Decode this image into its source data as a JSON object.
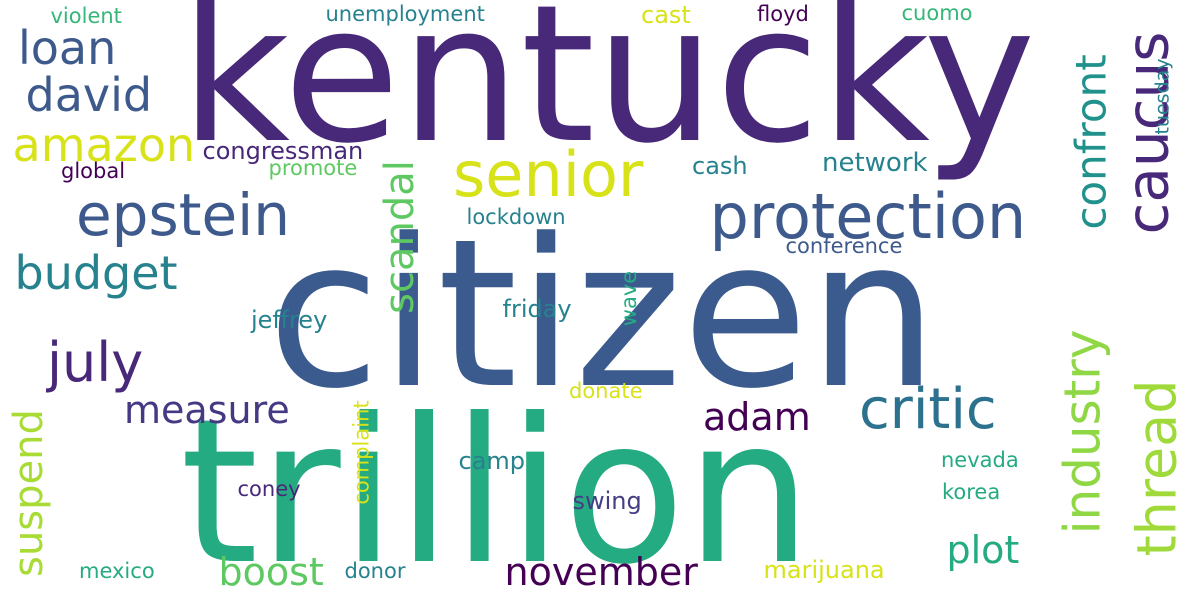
{
  "palette": {
    "dark_purple": "#440154",
    "purple": "#482878",
    "indigo": "#3e4a89",
    "blue": "#31688e",
    "teal_blue": "#26828e",
    "teal": "#1f9e89",
    "green": "#35b779",
    "light_green": "#6ece58",
    "lime": "#b5de2b",
    "yellow": "#d8e219"
  },
  "words": [
    {
      "text": "kentucky",
      "color": "#482878",
      "weight": 100
    },
    {
      "text": "citizen",
      "color": "#3b5a8e",
      "weight": 97
    },
    {
      "text": "trillion",
      "color": "#25ab82",
      "weight": 96
    },
    {
      "text": "protection",
      "color": "#3e5a8c",
      "weight": 45
    },
    {
      "text": "senior",
      "color": "#d8e219",
      "weight": 41
    },
    {
      "text": "epstein",
      "color": "#3e5a8c",
      "weight": 40
    },
    {
      "text": "caucus",
      "color": "#482878",
      "weight": 38
    },
    {
      "text": "industry",
      "color": "#8fd744",
      "weight": 36
    },
    {
      "text": "thread",
      "color": "#9fda3a",
      "weight": 33
    },
    {
      "text": "critic",
      "color": "#2c728e",
      "weight": 32
    },
    {
      "text": "july",
      "color": "#482878",
      "weight": 31
    },
    {
      "text": "confront",
      "color": "#21918c",
      "weight": 28
    },
    {
      "text": "amazon",
      "color": "#d8e219",
      "weight": 27
    },
    {
      "text": "david",
      "color": "#3e5a8c",
      "weight": 27
    },
    {
      "text": "loan",
      "color": "#3e5a8c",
      "weight": 27
    },
    {
      "text": "budget",
      "color": "#26828e",
      "weight": 26
    },
    {
      "text": "scandal",
      "color": "#5ec962",
      "weight": 24
    },
    {
      "text": "suspend",
      "color": "#a8db34",
      "weight": 22
    },
    {
      "text": "measure",
      "color": "#443983",
      "weight": 22
    },
    {
      "text": "november",
      "color": "#440154",
      "weight": 22
    },
    {
      "text": "boost",
      "color": "#5ec962",
      "weight": 22
    },
    {
      "text": "plot",
      "color": "#25ab82",
      "weight": 22
    },
    {
      "text": "adam",
      "color": "#440154",
      "weight": 21
    },
    {
      "text": "network",
      "color": "#26828e",
      "weight": 15
    },
    {
      "text": "congressman",
      "color": "#482878",
      "weight": 14
    },
    {
      "text": "camp",
      "color": "#26828e",
      "weight": 14
    },
    {
      "text": "jeffrey",
      "color": "#26828e",
      "weight": 14
    },
    {
      "text": "friday",
      "color": "#26828e",
      "weight": 14
    },
    {
      "text": "cash",
      "color": "#26828e",
      "weight": 14
    },
    {
      "text": "marijuana",
      "color": "#d8e219",
      "weight": 14
    },
    {
      "text": "swing",
      "color": "#433e85",
      "weight": 14
    },
    {
      "text": "cast",
      "color": "#d8e219",
      "weight": 14
    },
    {
      "text": "unemployment",
      "color": "#26828e",
      "weight": 12
    },
    {
      "text": "violent",
      "color": "#35b779",
      "weight": 12
    },
    {
      "text": "floyd",
      "color": "#440154",
      "weight": 12
    },
    {
      "text": "cuomo",
      "color": "#35b779",
      "weight": 12
    },
    {
      "text": "donor",
      "color": "#26828e",
      "weight": 12
    },
    {
      "text": "mexico",
      "color": "#25ab82",
      "weight": 12
    },
    {
      "text": "promote",
      "color": "#5ec962",
      "weight": 12
    },
    {
      "text": "global",
      "color": "#440154",
      "weight": 12
    },
    {
      "text": "lockdown",
      "color": "#26828e",
      "weight": 12
    },
    {
      "text": "conference",
      "color": "#3e5a8c",
      "weight": 12
    },
    {
      "text": "wave",
      "color": "#25ab82",
      "weight": 12
    },
    {
      "text": "donate",
      "color": "#d8e219",
      "weight": 12
    },
    {
      "text": "complaint",
      "color": "#d8e219",
      "weight": 12
    },
    {
      "text": "coney",
      "color": "#482878",
      "weight": 12
    },
    {
      "text": "nevada",
      "color": "#25ab82",
      "weight": 12
    },
    {
      "text": "korea",
      "color": "#25ab82",
      "weight": 12
    },
    {
      "text": "tuesday",
      "color": "#26828e",
      "weight": 10
    }
  ]
}
